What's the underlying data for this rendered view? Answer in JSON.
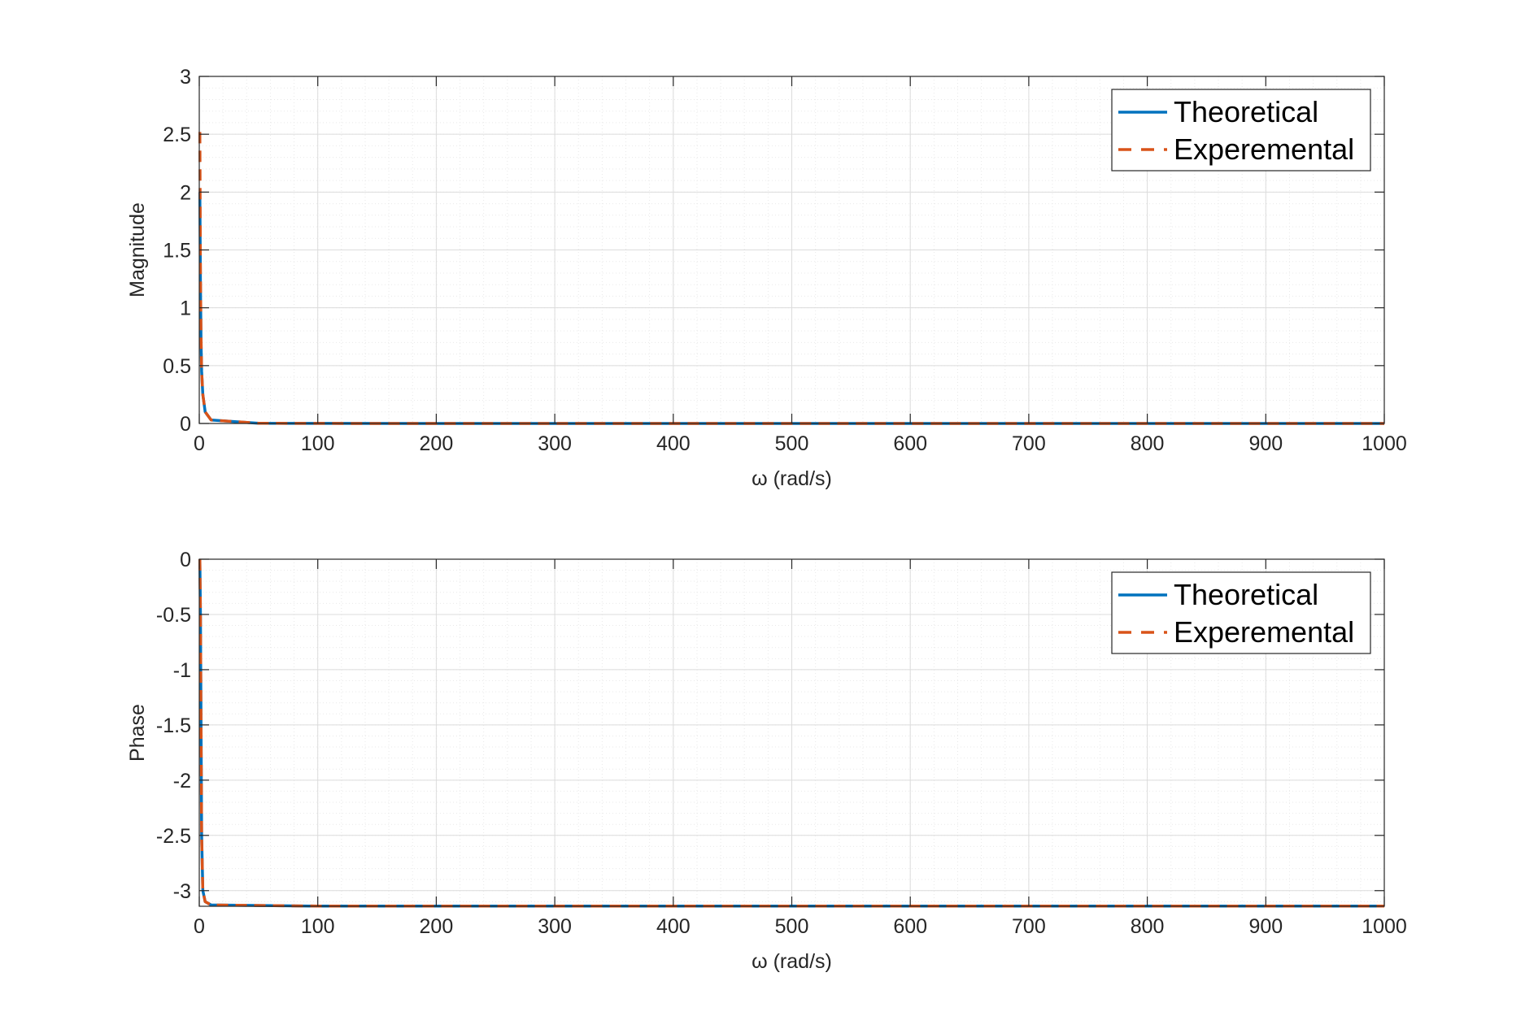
{
  "chart_data": [
    {
      "type": "line",
      "xlabel": "ω (rad/s)",
      "ylabel": "Magnitude",
      "xlim": [
        0,
        1000
      ],
      "ylim": [
        0,
        3
      ],
      "xticks": [
        0,
        100,
        200,
        300,
        400,
        500,
        600,
        700,
        800,
        900,
        1000
      ],
      "xtick_labels": [
        "0",
        "100",
        "200",
        "300",
        "400",
        "500",
        "600",
        "700",
        "800",
        "900",
        "1000"
      ],
      "yticks": [
        0,
        0.5,
        1,
        1.5,
        2,
        2.5,
        3
      ],
      "ytick_labels": [
        "0",
        "0.5",
        "1",
        "1.5",
        "2",
        "2.5",
        "3"
      ],
      "grid": true,
      "minor_grid": true,
      "legend_position": "top-right",
      "series": [
        {
          "name": "Theoretical",
          "color": "#0072BD",
          "style": "solid",
          "x": [
            0.5,
            1,
            1.5,
            2,
            3,
            5,
            10,
            50,
            100,
            200,
            300,
            400,
            500,
            600,
            700,
            800,
            900,
            1000
          ],
          "y": [
            2.0,
            1.2,
            0.7,
            0.45,
            0.25,
            0.1,
            0.03,
            0.002,
            0.0005,
            0.0001,
            0,
            0,
            0,
            0,
            0,
            0,
            0,
            0
          ]
        },
        {
          "name": "Experemental",
          "color": "#D95319",
          "style": "dashed",
          "x": [
            0.5,
            1,
            1.5,
            2,
            3,
            5,
            10,
            50,
            100,
            200,
            300,
            400,
            500,
            600,
            700,
            800,
            900,
            1000
          ],
          "y": [
            2.52,
            1.3,
            0.75,
            0.45,
            0.25,
            0.1,
            0.03,
            0.002,
            0.0005,
            0.0001,
            0,
            0,
            0,
            0,
            0,
            0,
            0,
            0
          ]
        }
      ]
    },
    {
      "type": "line",
      "xlabel": "ω (rad/s)",
      "ylabel": "Phase",
      "xlim": [
        0,
        1000
      ],
      "ylim": [
        -3.1416,
        0
      ],
      "xticks": [
        0,
        100,
        200,
        300,
        400,
        500,
        600,
        700,
        800,
        900,
        1000
      ],
      "xtick_labels": [
        "0",
        "100",
        "200",
        "300",
        "400",
        "500",
        "600",
        "700",
        "800",
        "900",
        "1000"
      ],
      "yticks": [
        0,
        -0.5,
        -1,
        -1.5,
        -2,
        -2.5,
        -3
      ],
      "ytick_labels": [
        "0",
        "-0.5",
        "-1",
        "-1.5",
        "-2",
        "-2.5",
        "-3"
      ],
      "grid": true,
      "minor_grid": true,
      "legend_position": "top-right",
      "series": [
        {
          "name": "Theoretical",
          "color": "#0072BD",
          "style": "solid",
          "x": [
            0.5,
            1,
            1.5,
            2,
            3,
            5,
            10,
            100,
            200,
            300,
            400,
            500,
            600,
            700,
            800,
            900,
            1000
          ],
          "y": [
            0,
            -0.5,
            -1.5,
            -2.5,
            -3.0,
            -3.1,
            -3.13,
            -3.14,
            -3.14,
            -3.14,
            -3.14,
            -3.14,
            -3.14,
            -3.14,
            -3.14,
            -3.14,
            -3.14
          ]
        },
        {
          "name": "Experemental",
          "color": "#D95319",
          "style": "dashed",
          "x": [
            0.5,
            1,
            1.5,
            2,
            3,
            5,
            10,
            100,
            200,
            300,
            400,
            500,
            600,
            700,
            800,
            900,
            1000
          ],
          "y": [
            0,
            -0.5,
            -1.5,
            -2.5,
            -3.0,
            -3.1,
            -3.13,
            -3.14,
            -3.14,
            -3.14,
            -3.14,
            -3.14,
            -3.14,
            -3.14,
            -3.14,
            -3.14,
            -3.14
          ]
        }
      ]
    }
  ]
}
